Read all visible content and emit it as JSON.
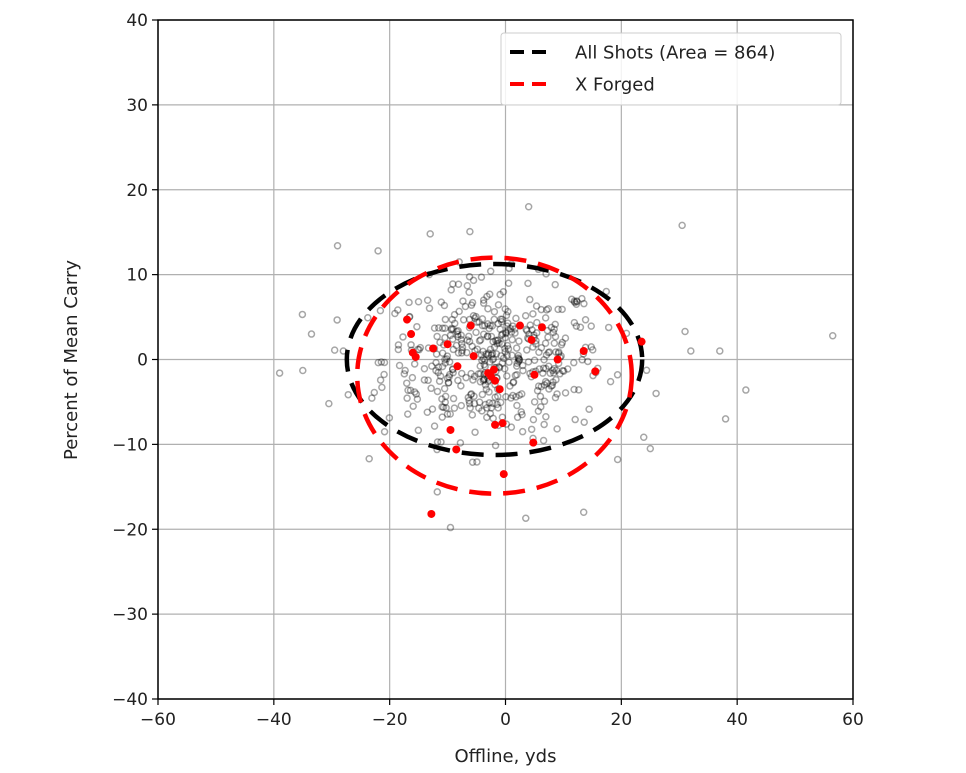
{
  "chart_data": {
    "type": "scatter",
    "title": "",
    "xlabel": "Offline, yds",
    "ylabel": "Percent of Mean Carry",
    "xlim": [
      -60,
      60
    ],
    "ylim": [
      -40,
      40
    ],
    "xticks": [
      -60,
      -40,
      -20,
      0,
      20,
      40,
      60
    ],
    "yticks": [
      -40,
      -30,
      -20,
      -10,
      0,
      10,
      20,
      30,
      40
    ],
    "xtick_labels": [
      "−60",
      "−40",
      "−20",
      "0",
      "20",
      "40",
      "60"
    ],
    "ytick_labels": [
      "−40",
      "−30",
      "−20",
      "−10",
      "0",
      "10",
      "20",
      "30",
      "40"
    ],
    "grid": true,
    "legend_position": "upper right",
    "legend": [
      {
        "label": "All Shots (Area = 864)",
        "color": "#000000",
        "style": "dashed"
      },
      {
        "label": "X Forged",
        "color": "#ff0000",
        "style": "dashed"
      }
    ],
    "ellipses": [
      {
        "name": "All Shots",
        "color": "#000000",
        "cx": -1.9,
        "cy": 0.0,
        "rx": 25.5,
        "ry": 11.25,
        "area": 864
      },
      {
        "name": "X Forged",
        "color": "#ff0000",
        "cx": -1.9,
        "cy": -1.9,
        "rx": 23.7,
        "ry": 13.9
      }
    ],
    "series": [
      {
        "name": "All Shots",
        "color": "#808080",
        "marker": "open-circle",
        "points_note": "approximately 500 grey open-circle points clustered around (-2, 0); outliers listed",
        "outliers": [
          [
            -39,
            -1.6
          ],
          [
            -33.5,
            3
          ],
          [
            -30.5,
            -5.2
          ],
          [
            -29,
            13.4
          ],
          [
            -22,
            12.8
          ],
          [
            -13,
            14.8
          ],
          [
            4,
            18
          ],
          [
            30.5,
            15.8
          ],
          [
            31,
            3.3
          ],
          [
            32,
            1
          ],
          [
            37,
            1
          ],
          [
            38,
            -7
          ],
          [
            41.5,
            -3.6
          ],
          [
            56.5,
            2.8
          ],
          [
            26,
            -4
          ],
          [
            25,
            -10.5
          ],
          [
            13.5,
            -18
          ],
          [
            3.5,
            -18.7
          ],
          [
            -9.5,
            -19.8
          ],
          [
            -28,
            1
          ],
          [
            -35,
            -1.3
          ]
        ]
      },
      {
        "name": "X Forged",
        "color": "#ff0000",
        "marker": "filled-circle",
        "points": [
          [
            -17,
            4.7
          ],
          [
            -16.3,
            3
          ],
          [
            -16,
            0.8
          ],
          [
            -15.5,
            0.3
          ],
          [
            -12.5,
            1.3
          ],
          [
            -10,
            1.8
          ],
          [
            -9.5,
            -8.3
          ],
          [
            -8.5,
            -10.6
          ],
          [
            -8.3,
            -0.8
          ],
          [
            -6,
            4
          ],
          [
            -5.5,
            0.4
          ],
          [
            -3,
            -1.6
          ],
          [
            -2.5,
            -2
          ],
          [
            -2,
            -1.2
          ],
          [
            -1.8,
            -2.5
          ],
          [
            -1,
            -3.5
          ],
          [
            -1.8,
            -7.7
          ],
          [
            -0.5,
            -7.5
          ],
          [
            -0.3,
            -13.5
          ],
          [
            2.5,
            4
          ],
          [
            4.5,
            2.3
          ],
          [
            5,
            -1.8
          ],
          [
            6.3,
            3.8
          ],
          [
            9,
            0
          ],
          [
            13.5,
            1
          ],
          [
            15.5,
            -1.4
          ],
          [
            23.5,
            2.1
          ],
          [
            -12.8,
            -18.2
          ],
          [
            4.8,
            -9.8
          ]
        ]
      }
    ]
  }
}
